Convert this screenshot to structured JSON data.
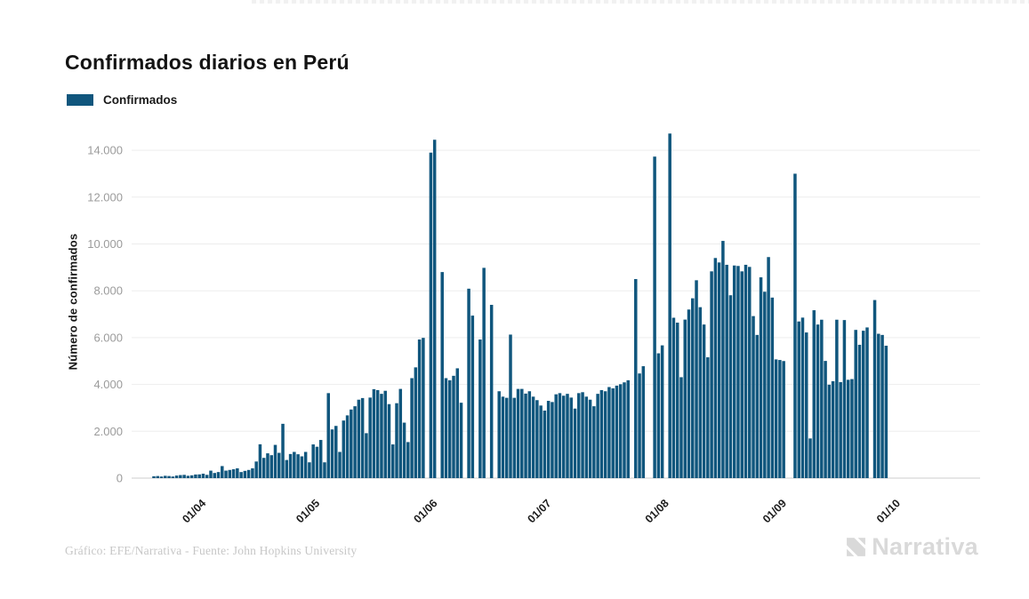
{
  "header": {
    "title": "Confirmados diarios en Perú"
  },
  "legend": {
    "items": [
      {
        "label": "Confirmados",
        "color": "#10567d"
      }
    ]
  },
  "footer": {
    "credit": "Gráfico: EFE/Narrativa - Fuente: John Hopkins University"
  },
  "branding": {
    "logo_text": "Narrativa",
    "logo_color": "#d9d9d9"
  },
  "chart_data": {
    "type": "bar",
    "title": "Confirmados diarios en Perú",
    "xlabel": "",
    "ylabel": "Número de confirmados",
    "legend_entries": [
      "Confirmados"
    ],
    "legend_position": "top-left",
    "grid": "horizontal",
    "bar_color": "#10567d",
    "ylim": [
      0,
      15000
    ],
    "y_ticks": [
      {
        "value": 0,
        "label": "0"
      },
      {
        "value": 2000,
        "label": "2.000"
      },
      {
        "value": 4000,
        "label": "4.000"
      },
      {
        "value": 6000,
        "label": "6.000"
      },
      {
        "value": 8000,
        "label": "8.000"
      },
      {
        "value": 10000,
        "label": "10.000"
      },
      {
        "value": 12000,
        "label": "12.000"
      },
      {
        "value": 14000,
        "label": "14.000"
      }
    ],
    "x_unit": "day",
    "x_ticks": [
      {
        "index": 12,
        "label": "01/04"
      },
      {
        "index": 42,
        "label": "01/05"
      },
      {
        "index": 73,
        "label": "01/06"
      },
      {
        "index": 103,
        "label": "01/07"
      },
      {
        "index": 134,
        "label": "01/08"
      },
      {
        "index": 165,
        "label": "01/09"
      },
      {
        "index": 195,
        "label": "01/10"
      }
    ],
    "series_name": "Confirmados",
    "n_points": 194,
    "values": [
      80,
      90,
      70,
      100,
      90,
      70,
      110,
      130,
      140,
      100,
      120,
      155,
      160,
      190,
      140,
      320,
      220,
      260,
      515,
      320,
      350,
      380,
      420,
      260,
      310,
      350,
      420,
      710,
      1445,
      865,
      1060,
      980,
      1420,
      1080,
      2320,
      775,
      1030,
      1120,
      1020,
      930,
      1120,
      675,
      1440,
      1340,
      1630,
      675,
      3630,
      2080,
      2230,
      1120,
      2460,
      2680,
      2930,
      3070,
      3350,
      3420,
      1920,
      3440,
      3800,
      3760,
      3600,
      3730,
      3160,
      1440,
      3200,
      3810,
      2370,
      1540,
      4270,
      4730,
      5920,
      5990,
      0,
      13900,
      14450,
      0,
      8800,
      4270,
      4180,
      4370,
      4690,
      3220,
      0,
      8090,
      6940,
      0,
      5920,
      8980,
      0,
      7400,
      0,
      3710,
      3480,
      3430,
      6130,
      3430,
      3810,
      3810,
      3610,
      3710,
      3480,
      3330,
      3100,
      2885,
      3300,
      3250,
      3580,
      3630,
      3520,
      3600,
      3440,
      2970,
      3630,
      3670,
      3480,
      3350,
      3070,
      3600,
      3760,
      3710,
      3890,
      3835,
      3950,
      4010,
      4090,
      4180,
      0,
      8500,
      4470,
      4780,
      0,
      0,
      13730,
      5330,
      5670,
      0,
      14715,
      6850,
      6640,
      4310,
      6770,
      7200,
      7680,
      8450,
      7300,
      6560,
      5160,
      8830,
      9400,
      9210,
      10130,
      9110,
      7810,
      9080,
      9060,
      8830,
      9110,
      9020,
      6920,
      6115,
      8575,
      7960,
      9440,
      7710,
      5070,
      5045,
      5000,
      0,
      0,
      13000,
      6690,
      6855,
      6220,
      1695,
      7170,
      6560,
      6765,
      5005,
      3990,
      4140,
      6765,
      4100,
      6750,
      4200,
      4230,
      6330,
      5695,
      6295,
      6435,
      0,
      7605,
      6165,
      6115,
      5655
    ]
  }
}
